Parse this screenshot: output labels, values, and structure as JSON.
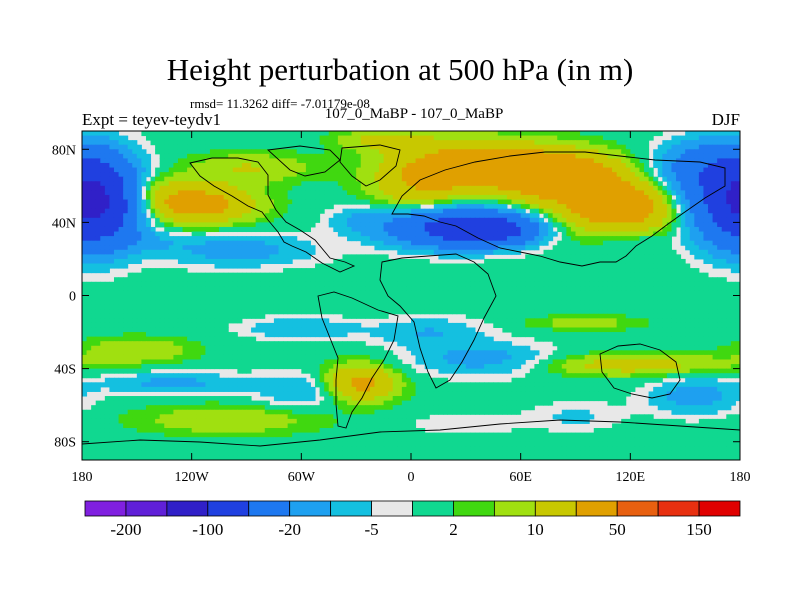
{
  "chart_data": {
    "type": "heatmap",
    "title": "Height perturbation at 500 hPa (in m)",
    "stats_line": "rmsd= 11.3262  diff= -7.01179e-08",
    "subtitle": "107_0_MaBP - 107_0_MaBP",
    "left_label": "Expt = teyev-teydv1",
    "right_label": "DJF",
    "x_range": [
      -180,
      180
    ],
    "y_range": [
      -90,
      90
    ],
    "x_ticks": [
      {
        "value": -180,
        "label": "180"
      },
      {
        "value": -120,
        "label": "120W"
      },
      {
        "value": -60,
        "label": "60W"
      },
      {
        "value": 0,
        "label": "0"
      },
      {
        "value": 60,
        "label": "60E"
      },
      {
        "value": 120,
        "label": "120E"
      },
      {
        "value": 180,
        "label": "180"
      }
    ],
    "y_ticks": [
      {
        "value": 80,
        "label": "80N"
      },
      {
        "value": 40,
        "label": "40N"
      },
      {
        "value": 0,
        "label": "0"
      },
      {
        "value": -40,
        "label": "40S"
      },
      {
        "value": -80,
        "label": "80S"
      }
    ],
    "colorbar": {
      "colors": [
        "#8020e0",
        "#6020d8",
        "#3020c8",
        "#2040e0",
        "#1e78f0",
        "#1ea0f0",
        "#14c0e0",
        "#e8e8e8",
        "#10d890",
        "#40d810",
        "#a0e010",
        "#c8c800",
        "#e0a000",
        "#e86010",
        "#e83010",
        "#e00000"
      ],
      "labels": [
        {
          "boundary": 1,
          "text": "-200"
        },
        {
          "boundary": 3,
          "text": "-100"
        },
        {
          "boundary": 5,
          "text": "-20"
        },
        {
          "boundary": 7,
          "text": "-5"
        },
        {
          "boundary": 9,
          "text": "2"
        },
        {
          "boundary": 11,
          "text": "10"
        },
        {
          "boundary": 13,
          "text": "50"
        },
        {
          "boundary": 15,
          "text": "150"
        }
      ]
    },
    "field_blobs": [
      {
        "lon": -172,
        "lat": 52,
        "rlon": 20,
        "rlat": 22,
        "amp": -70
      },
      {
        "lon": 178,
        "lat": 52,
        "rlon": 28,
        "rlat": 22,
        "amp": -60
      },
      {
        "lon": 160,
        "lat": 70,
        "rlon": 25,
        "rlat": 14,
        "amp": -25
      },
      {
        "lon": -118,
        "lat": 50,
        "rlon": 32,
        "rlat": 11,
        "amp": 28
      },
      {
        "lon": -150,
        "lat": 58,
        "rlon": 20,
        "rlat": 9,
        "amp": 12
      },
      {
        "lon": -88,
        "lat": 70,
        "rlon": 35,
        "rlat": 8,
        "amp": 10
      },
      {
        "lon": -95,
        "lat": 25,
        "rlon": 42,
        "rlat": 9,
        "amp": -14
      },
      {
        "lon": -145,
        "lat": 30,
        "rlon": 22,
        "rlat": 6,
        "amp": -6
      },
      {
        "lon": 35,
        "lat": 72,
        "rlon": 40,
        "rlat": 13,
        "amp": 25
      },
      {
        "lon": 80,
        "lat": 66,
        "rlon": 35,
        "rlat": 13,
        "amp": 32
      },
      {
        "lon": 115,
        "lat": 48,
        "rlon": 38,
        "rlat": 15,
        "amp": 30
      },
      {
        "lon": 5,
        "lat": 60,
        "rlon": 28,
        "rlat": 16,
        "amp": 16
      },
      {
        "lon": -15,
        "lat": 85,
        "rlon": 25,
        "rlat": 6,
        "amp": 12
      },
      {
        "lon": 25,
        "lat": 37,
        "rlon": 36,
        "rlat": 10,
        "amp": -65
      },
      {
        "lon": 45,
        "lat": 36,
        "rlon": 22,
        "rlat": 7,
        "amp": -45
      },
      {
        "lon": -30,
        "lat": 42,
        "rlon": 16,
        "rlat": 8,
        "amp": -8
      },
      {
        "lon": 120,
        "lat": 30,
        "rlon": 20,
        "rlat": 6,
        "amp": -6
      },
      {
        "lon": -60,
        "lat": -18,
        "rlon": 32,
        "rlat": 6,
        "amp": -10
      },
      {
        "lon": 10,
        "lat": -20,
        "rlon": 30,
        "rlat": 8,
        "amp": -10
      },
      {
        "lon": -150,
        "lat": -30,
        "rlon": 30,
        "rlat": 7,
        "amp": 10
      },
      {
        "lon": 95,
        "lat": -15,
        "rlon": 30,
        "rlat": 4,
        "amp": 8
      },
      {
        "lon": -130,
        "lat": -48,
        "rlon": 40,
        "rlat": 6,
        "amp": -12
      },
      {
        "lon": -60,
        "lat": -52,
        "rlon": 25,
        "rlat": 10,
        "amp": -10
      },
      {
        "lon": -28,
        "lat": -48,
        "rlon": 20,
        "rlat": 10,
        "amp": 25
      },
      {
        "lon": 40,
        "lat": -35,
        "rlon": 38,
        "rlat": 9,
        "amp": -14
      },
      {
        "lon": 120,
        "lat": -38,
        "rlon": 55,
        "rlat": 6,
        "amp": 14
      },
      {
        "lon": -100,
        "lat": -68,
        "rlon": 48,
        "rlat": 8,
        "amp": 10
      },
      {
        "lon": 155,
        "lat": -55,
        "rlon": 25,
        "rlat": 10,
        "amp": -14
      },
      {
        "lon": 90,
        "lat": -66,
        "rlon": 25,
        "rlat": 8,
        "amp": -6
      },
      {
        "lon": 30,
        "lat": -70,
        "rlon": 30,
        "rlat": 6,
        "amp": -5
      }
    ]
  }
}
